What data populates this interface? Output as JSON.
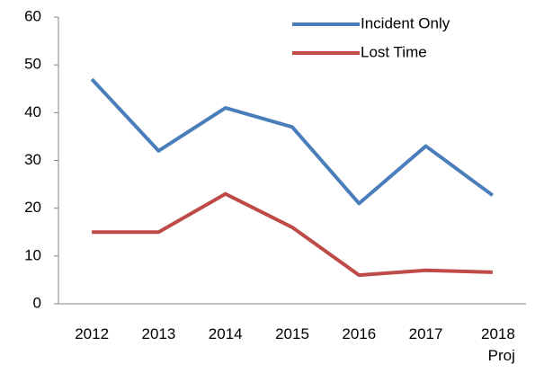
{
  "chart_data": {
    "type": "line",
    "categories": [
      "2012",
      "2013",
      "2014",
      "2015",
      "2016",
      "2017",
      "2018\nProj"
    ],
    "series": [
      {
        "name": "Incident Only",
        "color": "#4a7ebb",
        "values": [
          47,
          32,
          41,
          37,
          21,
          33,
          22.7
        ]
      },
      {
        "name": "Lost Time",
        "color": "#be4b48",
        "values": [
          15,
          15,
          23,
          16,
          6,
          7,
          6.6
        ]
      }
    ],
    "ylim": [
      0,
      60
    ],
    "yticks": [
      0,
      10,
      20,
      30,
      40,
      50,
      60
    ],
    "grid": false,
    "legend": "top-right"
  }
}
